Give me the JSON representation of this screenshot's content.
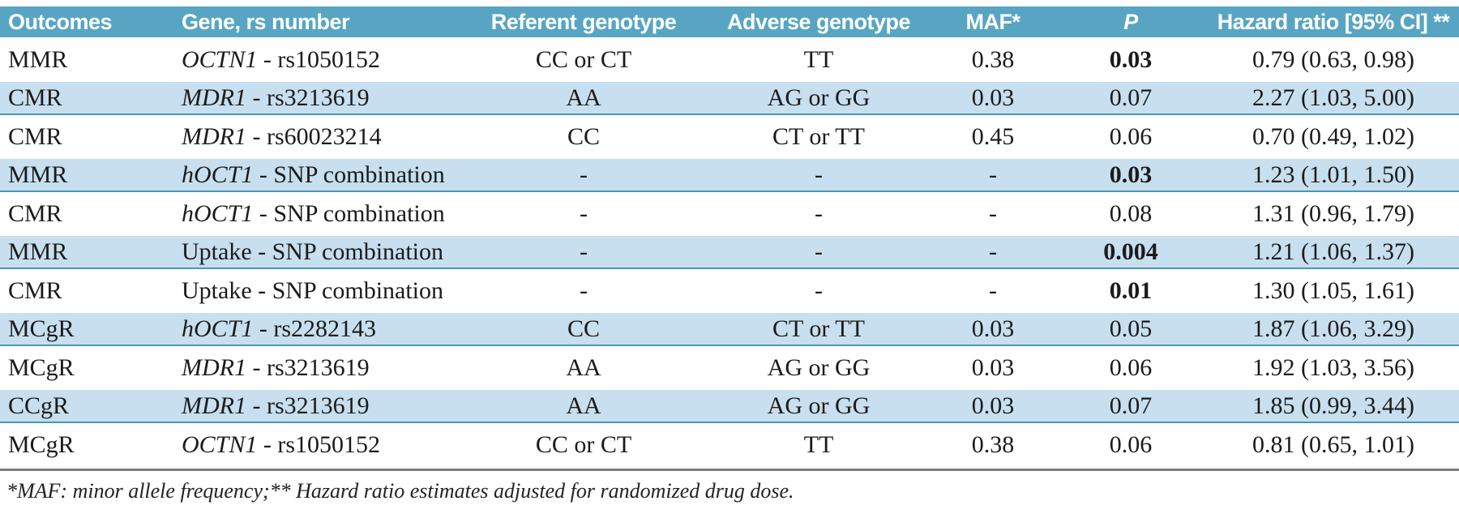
{
  "colors": {
    "header_bg": "#58a5c3",
    "row_shaded_bg": "#c7dfee",
    "row_border": "#4c96b0",
    "rule_color": "#7d7d7d",
    "header_text": "#ffffff",
    "body_text": "#1b1b1b"
  },
  "table": {
    "headers": {
      "outcomes": "Outcomes",
      "gene": "Gene, rs number",
      "referent": "Referent genotype",
      "adverse": "Adverse genotype",
      "maf": "MAF*",
      "p": "P",
      "hazard": "Hazard ratio [95% CI] **"
    },
    "rows": [
      {
        "outcome": "MMR",
        "gene_symbol": "OCTN1",
        "gene_rest": " - rs1050152",
        "referent": "CC or CT",
        "adverse": "TT",
        "maf": "0.38",
        "p": "0.03",
        "p_bold": true,
        "hr": "0.79 (0.63, 0.98)",
        "shaded": false
      },
      {
        "outcome": "CMR",
        "gene_symbol": "MDR1",
        "gene_rest": " - rs3213619",
        "referent": "AA",
        "adverse": "AG or GG",
        "maf": "0.03",
        "p": "0.07",
        "p_bold": false,
        "hr": "2.27 (1.03, 5.00)",
        "shaded": true
      },
      {
        "outcome": "CMR",
        "gene_symbol": "MDR1",
        "gene_rest": " - rs60023214",
        "referent": "CC",
        "adverse": "CT or TT",
        "maf": "0.45",
        "p": "0.06",
        "p_bold": false,
        "hr": "0.70 (0.49, 1.02)",
        "shaded": false
      },
      {
        "outcome": "MMR",
        "gene_symbol": "hOCT1",
        "gene_rest": " - SNP combination",
        "referent": "-",
        "adverse": "-",
        "maf": "-",
        "p": "0.03",
        "p_bold": true,
        "hr": "1.23 (1.01, 1.50)",
        "shaded": true
      },
      {
        "outcome": "CMR",
        "gene_symbol": "hOCT1",
        "gene_rest": " - SNP combination",
        "referent": "-",
        "adverse": "-",
        "maf": "-",
        "p": "0.08",
        "p_bold": false,
        "hr": "1.31 (0.96, 1.79)",
        "shaded": false
      },
      {
        "outcome": "MMR",
        "gene_symbol": "",
        "gene_rest": "Uptake - SNP combination",
        "referent": "-",
        "adverse": "-",
        "maf": "-",
        "p": "0.004",
        "p_bold": true,
        "hr": "1.21 (1.06, 1.37)",
        "shaded": true
      },
      {
        "outcome": "CMR",
        "gene_symbol": "",
        "gene_rest": "Uptake - SNP combination",
        "referent": "-",
        "adverse": "-",
        "maf": "-",
        "p": "0.01",
        "p_bold": true,
        "hr": "1.30 (1.05, 1.61)",
        "shaded": false
      },
      {
        "outcome": "MCgR",
        "gene_symbol": "hOCT1",
        "gene_rest": " - rs2282143",
        "referent": "CC",
        "adverse": "CT or TT",
        "maf": "0.03",
        "p": "0.05",
        "p_bold": false,
        "hr": "1.87 (1.06, 3.29)",
        "shaded": true
      },
      {
        "outcome": "MCgR",
        "gene_symbol": "MDR1",
        "gene_rest": " - rs3213619",
        "referent": "AA",
        "adverse": "AG or GG",
        "maf": "0.03",
        "p": "0.06",
        "p_bold": false,
        "hr": "1.92 (1.03, 3.56)",
        "shaded": false
      },
      {
        "outcome": "CCgR",
        "gene_symbol": "MDR1",
        "gene_rest": " - rs3213619",
        "referent": "AA",
        "adverse": "AG or GG",
        "maf": "0.03",
        "p": "0.07",
        "p_bold": false,
        "hr": "1.85 (0.99, 3.44)",
        "shaded": true
      },
      {
        "outcome": "MCgR",
        "gene_symbol": "OCTN1",
        "gene_rest": " - rs1050152",
        "referent": "CC or CT",
        "adverse": "TT",
        "maf": "0.38",
        "p": "0.06",
        "p_bold": false,
        "hr": "0.81 (0.65, 1.01)",
        "shaded": false
      }
    ],
    "footnote": "*MAF: minor allele frequency;** Hazard ratio estimates adjusted for randomized drug dose."
  }
}
